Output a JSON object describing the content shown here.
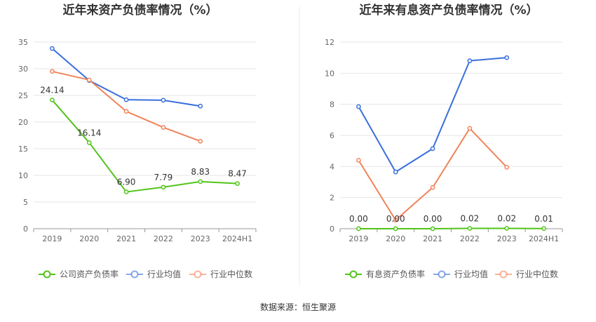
{
  "source_text": "数据来源：恒生聚源",
  "chart_data": [
    {
      "type": "line",
      "title": "近年来资产负债率情况（%）",
      "categories": [
        "2019",
        "2020",
        "2021",
        "2022",
        "2023",
        "2024H1"
      ],
      "ylim": [
        0,
        35
      ],
      "yticks": [
        0,
        5,
        10,
        15,
        20,
        25,
        30,
        35
      ],
      "grid": true,
      "legend_position": "bottom",
      "series": [
        {
          "name": "公司资产负债率",
          "color": "#52c41a",
          "values": [
            24.14,
            16.14,
            6.9,
            7.79,
            8.83,
            8.47
          ],
          "labels": [
            "24.14",
            "16.14",
            "6.90",
            "7.79",
            "8.83",
            "8.47"
          ]
        },
        {
          "name": "行业均值",
          "color": "#3a6fdc",
          "values": [
            33.8,
            27.8,
            24.2,
            24.1,
            23.0,
            null
          ],
          "labels": null
        },
        {
          "name": "行业中位数",
          "color": "#f0845a",
          "values": [
            29.5,
            27.9,
            22.0,
            19.0,
            16.4,
            null
          ],
          "labels": null
        }
      ]
    },
    {
      "type": "line",
      "title": "近年来有息资产负债率情况（%）",
      "categories": [
        "2019",
        "2020",
        "2021",
        "2022",
        "2023",
        "2024H1"
      ],
      "ylim": [
        0,
        12
      ],
      "yticks": [
        0,
        2,
        4,
        6,
        8,
        10,
        12
      ],
      "grid": true,
      "legend_position": "bottom",
      "series": [
        {
          "name": "有息资产负债率",
          "color": "#52c41a",
          "values": [
            0.0,
            0.0,
            0.0,
            0.02,
            0.02,
            0.01
          ],
          "labels": [
            "0.00",
            "0.00",
            "0.00",
            "0.02",
            "0.02",
            "0.01"
          ]
        },
        {
          "name": "行业均值",
          "color": "#3a6fdc",
          "values": [
            7.85,
            3.65,
            5.15,
            10.8,
            11.0,
            null
          ],
          "labels": null
        },
        {
          "name": "行业中位数",
          "color": "#f0845a",
          "values": [
            4.4,
            0.55,
            2.65,
            6.45,
            3.95,
            null
          ],
          "labels": null
        }
      ]
    }
  ]
}
